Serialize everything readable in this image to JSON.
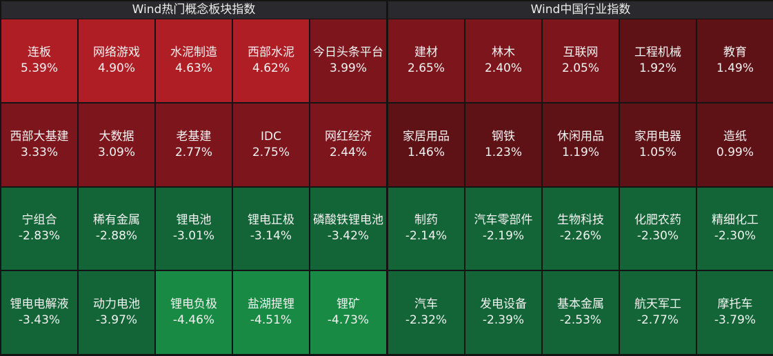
{
  "panels": [
    {
      "title": "Wind热门概念板块指数",
      "cells": [
        {
          "name": "连板",
          "change": "5.39%",
          "color": "#ae1e24"
        },
        {
          "name": "网络游戏",
          "change": "4.90%",
          "color": "#ae1e24"
        },
        {
          "name": "水泥制造",
          "change": "4.63%",
          "color": "#ae1e24"
        },
        {
          "name": "西部水泥",
          "change": "4.62%",
          "color": "#ae1e24"
        },
        {
          "name": "今日头条平台",
          "change": "3.99%",
          "color": "#7c161c"
        },
        {
          "name": "西部大基建",
          "change": "3.33%",
          "color": "#7c161c"
        },
        {
          "name": "大数据",
          "change": "3.09%",
          "color": "#7c161c"
        },
        {
          "name": "老基建",
          "change": "2.77%",
          "color": "#7c161c"
        },
        {
          "name": "IDC",
          "change": "2.75%",
          "color": "#7c161c"
        },
        {
          "name": "网红经济",
          "change": "2.44%",
          "color": "#7c161c"
        },
        {
          "name": "宁组合",
          "change": "-2.83%",
          "color": "#136436"
        },
        {
          "name": "稀有金属",
          "change": "-2.88%",
          "color": "#136436"
        },
        {
          "name": "锂电池",
          "change": "-3.01%",
          "color": "#136436"
        },
        {
          "name": "锂电正极",
          "change": "-3.14%",
          "color": "#136436"
        },
        {
          "name": "磷酸铁锂电池",
          "change": "-3.42%",
          "color": "#136436"
        },
        {
          "name": "锂电电解液",
          "change": "-3.43%",
          "color": "#136436"
        },
        {
          "name": "动力电池",
          "change": "-3.97%",
          "color": "#136436"
        },
        {
          "name": "锂电负极",
          "change": "-4.46%",
          "color": "#188a43"
        },
        {
          "name": "盐湖提锂",
          "change": "-4.51%",
          "color": "#188a43"
        },
        {
          "name": "锂矿",
          "change": "-4.73%",
          "color": "#188a43"
        }
      ]
    },
    {
      "title": "Wind中国行业指数",
      "cells": [
        {
          "name": "建材",
          "change": "2.65%",
          "color": "#7c161c"
        },
        {
          "name": "林木",
          "change": "2.40%",
          "color": "#7c161c"
        },
        {
          "name": "互联网",
          "change": "2.05%",
          "color": "#7c161c"
        },
        {
          "name": "工程机械",
          "change": "1.92%",
          "color": "#5e1216"
        },
        {
          "name": "教育",
          "change": "1.49%",
          "color": "#5e1216"
        },
        {
          "name": "家居用品",
          "change": "1.46%",
          "color": "#5e1216"
        },
        {
          "name": "钢铁",
          "change": "1.23%",
          "color": "#5e1216"
        },
        {
          "name": "休闲用品",
          "change": "1.19%",
          "color": "#5e1216"
        },
        {
          "name": "家用电器",
          "change": "1.05%",
          "color": "#5e1216"
        },
        {
          "name": "造纸",
          "change": "0.99%",
          "color": "#5e1216"
        },
        {
          "name": "制药",
          "change": "-2.14%",
          "color": "#136436"
        },
        {
          "name": "汽车零部件",
          "change": "-2.19%",
          "color": "#136436"
        },
        {
          "name": "生物科技",
          "change": "-2.26%",
          "color": "#136436"
        },
        {
          "name": "化肥农药",
          "change": "-2.30%",
          "color": "#136436"
        },
        {
          "name": "精细化工",
          "change": "-2.30%",
          "color": "#136436"
        },
        {
          "name": "汽车",
          "change": "-2.32%",
          "color": "#136436"
        },
        {
          "name": "发电设备",
          "change": "-2.39%",
          "color": "#136436"
        },
        {
          "name": "基本金属",
          "change": "-2.53%",
          "color": "#136436"
        },
        {
          "name": "航天军工",
          "change": "-2.77%",
          "color": "#136436"
        },
        {
          "name": "摩托车",
          "change": "-3.79%",
          "color": "#136436"
        }
      ]
    }
  ]
}
